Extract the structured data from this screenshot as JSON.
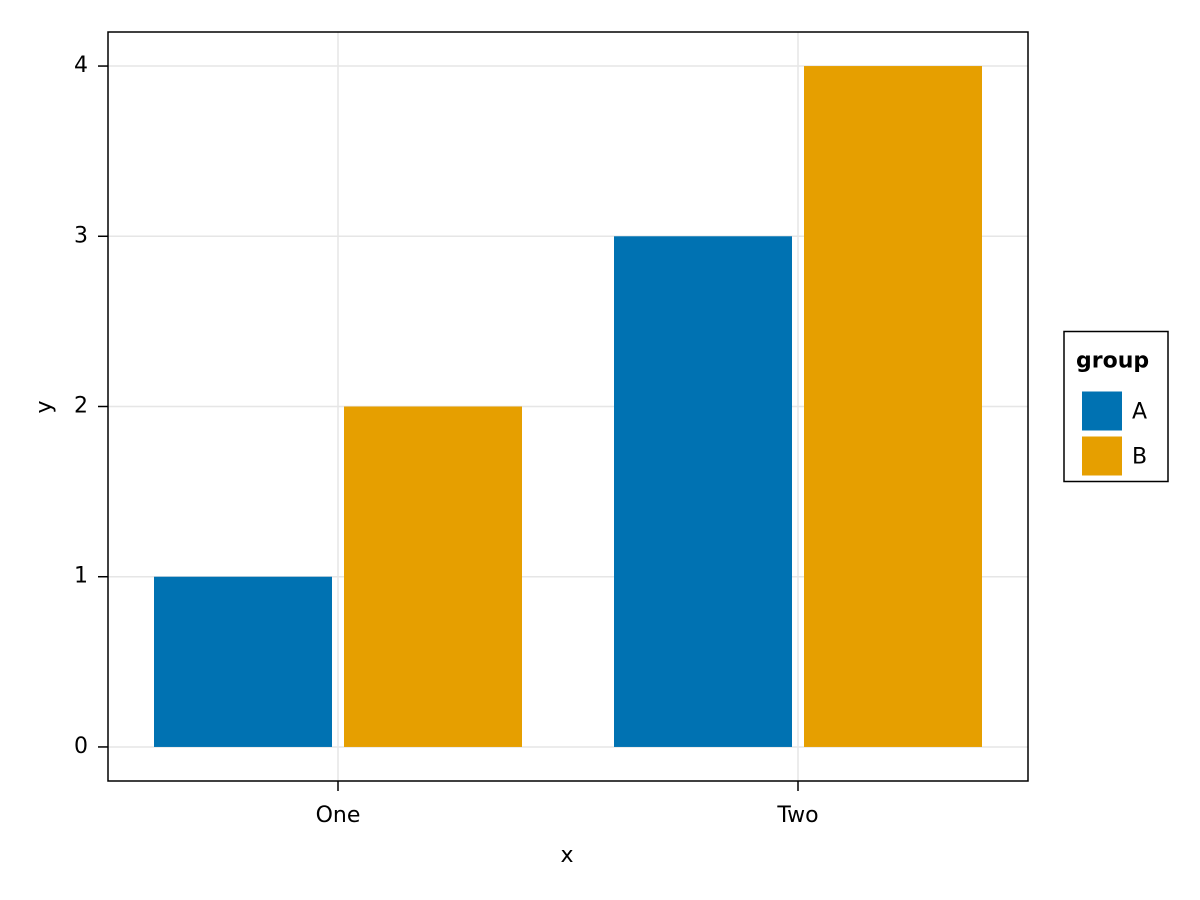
{
  "chart_data": {
    "type": "bar",
    "categories": [
      "One",
      "Two"
    ],
    "series": [
      {
        "name": "A",
        "color": "#0072b2",
        "values": [
          1,
          3
        ]
      },
      {
        "name": "B",
        "color": "#e69f00",
        "values": [
          2,
          4
        ]
      }
    ],
    "xlabel": "x",
    "ylabel": "y",
    "ylim": [
      -0.2,
      4.2
    ],
    "yticks": [
      0,
      1,
      2,
      3,
      4
    ],
    "grid": true,
    "legend_title": "group",
    "legend_position": "right"
  }
}
